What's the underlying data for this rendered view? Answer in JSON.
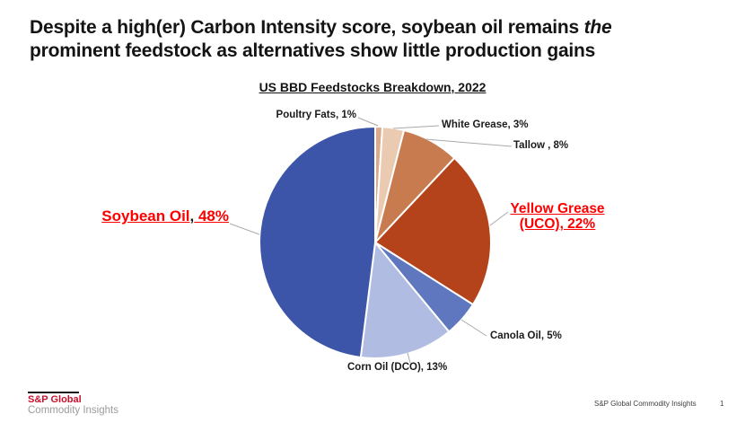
{
  "slide": {
    "title": {
      "part1": "Despite a high(er) Carbon Intensity score, soybean oil remains ",
      "italic": "the",
      "part2": "prominent feedstock as alternatives show little production gains"
    }
  },
  "chart_data": {
    "type": "pie",
    "title": "US BBD Feedstocks Breakdown, 2022",
    "start_angle_deg": 0,
    "direction": "clockwise",
    "legend_position": "none",
    "leader_line_color": "#a9a9a9",
    "slice_border_color": "#ffffff",
    "emphasis_color": "#ff0000",
    "slices": [
      {
        "id": "poultry-fats",
        "name": "Poultry Fats",
        "value": 1,
        "label": "Poultry Fats, 1%",
        "color": "#dca98b",
        "emphasis": false
      },
      {
        "id": "white-grease",
        "name": "White Grease",
        "value": 3,
        "label": "White Grease, 3%",
        "color": "#eacbb1",
        "emphasis": false
      },
      {
        "id": "tallow",
        "name": "Tallow",
        "value": 8,
        "label": "Tallow , 8%",
        "color": "#c77b4f",
        "emphasis": false
      },
      {
        "id": "yellow-grease-uco",
        "name": "Yellow Grease (UCO)",
        "value": 22,
        "label": "Yellow Grease (UCO), 22%",
        "color": "#b4431b",
        "emphasis": true,
        "label_lines": [
          "Yellow Grease",
          "(UCO), 22%"
        ]
      },
      {
        "id": "canola-oil",
        "name": "Canola Oil",
        "value": 5,
        "label": "Canola Oil, 5%",
        "color": "#5e77be",
        "emphasis": false
      },
      {
        "id": "corn-oil-dco",
        "name": "Corn Oil (DCO)",
        "value": 13,
        "label": "Corn Oil (DCO), 13%",
        "color": "#b1bce2",
        "emphasis": false
      },
      {
        "id": "soybean-oil",
        "name": "Soybean Oil",
        "value": 48,
        "label": "Soybean Oil, 48%",
        "color": "#3c55a8",
        "emphasis": true,
        "label_parts": {
          "name": "Soybean Oil",
          "comma": ",",
          "pct": " 48%"
        }
      }
    ]
  },
  "footer": {
    "logo_top": "S&P Global",
    "logo_bottom": "Commodity Insights",
    "brand_red": "#c8102e",
    "right_text": "S&P Global Commodity Insights",
    "page_number": "1"
  }
}
